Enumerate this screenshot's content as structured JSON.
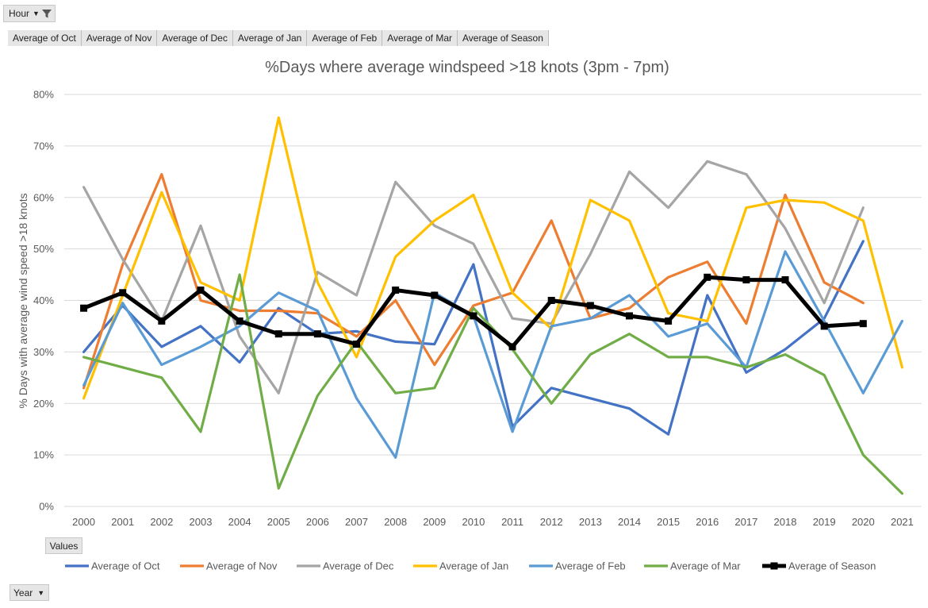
{
  "filters": {
    "hour_label": "Hour",
    "year_label": "Year",
    "values_label": "Values",
    "value_fields": [
      "Average of Oct",
      "Average of Nov",
      "Average of Dec",
      "Average of Jan",
      "Average of Feb",
      "Average of Mar",
      "Average of Season"
    ]
  },
  "icons": {
    "dropdown": "dropdown-caret-icon",
    "filter": "funnel-filter-icon"
  },
  "chart_data": {
    "type": "line",
    "title": "%Days where average windspeed >18 knots (3pm - 7pm)",
    "xlabel": "",
    "ylabel": "% Days with average wind speed >18 knots",
    "ylim": [
      0,
      0.8
    ],
    "yticks": [
      "0%",
      "10%",
      "20%",
      "30%",
      "40%",
      "50%",
      "60%",
      "70%",
      "80%"
    ],
    "grid": true,
    "legend_position": "bottom",
    "categories": [
      "2000",
      "2001",
      "2002",
      "2003",
      "2004",
      "2005",
      "2006",
      "2007",
      "2008",
      "2009",
      "2010",
      "2011",
      "2012",
      "2013",
      "2014",
      "2015",
      "2016",
      "2017",
      "2018",
      "2019",
      "2020",
      "2021"
    ],
    "series": [
      {
        "name": "Average of Oct",
        "color": "#4472c4",
        "values": [
          0.3,
          0.39,
          0.31,
          0.35,
          0.28,
          0.385,
          0.335,
          0.34,
          0.32,
          0.315,
          0.47,
          0.155,
          0.23,
          0.21,
          0.19,
          0.14,
          0.41,
          0.26,
          0.305,
          0.365,
          0.515,
          null
        ]
      },
      {
        "name": "Average of Nov",
        "color": "#ed7d31",
        "values": [
          0.23,
          0.47,
          0.645,
          0.4,
          0.38,
          0.38,
          0.375,
          0.33,
          0.4,
          0.275,
          0.39,
          0.415,
          0.555,
          0.365,
          0.385,
          0.445,
          0.475,
          0.355,
          0.605,
          0.435,
          0.395,
          null
        ]
      },
      {
        "name": "Average of Dec",
        "color": "#a5a5a5",
        "values": [
          0.62,
          0.48,
          0.36,
          0.545,
          0.33,
          0.22,
          0.455,
          0.41,
          0.63,
          0.545,
          0.51,
          0.365,
          0.355,
          0.49,
          0.65,
          0.58,
          0.67,
          0.645,
          0.54,
          0.395,
          0.58,
          null
        ]
      },
      {
        "name": "Average of Jan",
        "color": "#ffc000",
        "values": [
          0.21,
          0.41,
          0.61,
          0.435,
          0.4,
          0.755,
          0.435,
          0.29,
          0.485,
          0.555,
          0.605,
          0.415,
          0.345,
          0.595,
          0.555,
          0.375,
          0.36,
          0.58,
          0.595,
          0.59,
          0.555,
          0.27
        ]
      },
      {
        "name": "Average of Feb",
        "color": "#5b9bd5",
        "values": [
          0.235,
          0.395,
          0.275,
          0.31,
          0.35,
          0.415,
          0.38,
          0.21,
          0.095,
          0.415,
          0.37,
          0.145,
          0.35,
          0.365,
          0.41,
          0.33,
          0.355,
          0.27,
          0.495,
          0.36,
          0.22,
          0.36
        ]
      },
      {
        "name": "Average of Mar",
        "color": "#70ad47",
        "values": [
          0.29,
          0.27,
          0.25,
          0.145,
          0.45,
          0.035,
          0.215,
          0.32,
          0.22,
          0.23,
          0.385,
          0.305,
          0.2,
          0.295,
          0.335,
          0.29,
          0.29,
          0.27,
          0.295,
          0.255,
          0.1,
          0.025
        ]
      },
      {
        "name": "Average of Season",
        "color": "#000000",
        "values": [
          0.385,
          0.415,
          0.36,
          0.42,
          0.36,
          0.335,
          0.335,
          0.315,
          0.42,
          0.41,
          0.37,
          0.31,
          0.4,
          0.39,
          0.37,
          0.36,
          0.445,
          0.44,
          0.44,
          0.35,
          0.355,
          null
        ]
      }
    ]
  }
}
